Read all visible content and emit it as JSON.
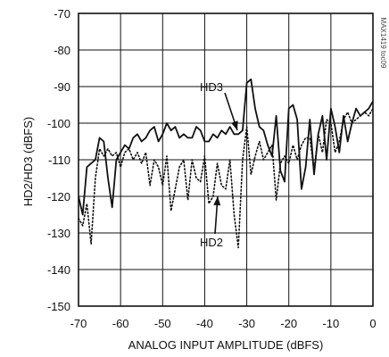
{
  "chart_data": {
    "type": "line",
    "title": "",
    "xlabel": "ANALOG INPUT AMPLITUDE (dBFS)",
    "ylabel": "HD2/HD3 (dBFS)",
    "xlim": [
      -70,
      0
    ],
    "ylim": [
      -150,
      -70
    ],
    "xticks": [
      "-70",
      "-60",
      "-50",
      "-40",
      "-30",
      "-20",
      "-10",
      "0"
    ],
    "yticks": [
      "-70",
      "-80",
      "-90",
      "-100",
      "-110",
      "-120",
      "-130",
      "-140",
      "-150"
    ],
    "grid": true,
    "series": [
      {
        "name": "HD3",
        "style": "solid",
        "x": [
          -70,
          -69,
          -68,
          -67,
          -66,
          -65,
          -64,
          -63,
          -62,
          -61,
          -60,
          -59,
          -58,
          -57,
          -56,
          -55,
          -54,
          -53,
          -52,
          -51,
          -50,
          -49,
          -48,
          -47,
          -46,
          -45,
          -44,
          -43,
          -42,
          -41,
          -40,
          -39,
          -38,
          -37,
          -36,
          -35,
          -34,
          -33,
          -32,
          -31,
          -30,
          -29,
          -28,
          -27,
          -26,
          -25,
          -24,
          -23,
          -22,
          -21,
          -20,
          -19,
          -18,
          -17,
          -16,
          -15,
          -14,
          -13,
          -12,
          -11,
          -10,
          -9,
          -8,
          -7,
          -6,
          -5,
          -4,
          -3,
          -2,
          -1,
          0
        ],
        "values": [
          -120,
          -125,
          -112,
          -111,
          -110,
          -104,
          -105,
          -115,
          -123,
          -110,
          -108,
          -106,
          -107,
          -104,
          -103,
          -105,
          -104,
          -102,
          -101,
          -105,
          -103,
          -100,
          -102,
          -101,
          -104,
          -103,
          -104,
          -104,
          -101,
          -102,
          -105,
          -105,
          -103,
          -104,
          -102,
          -103,
          -101,
          -103,
          -103,
          -102,
          -89,
          -88,
          -96,
          -101,
          -102,
          -106,
          -109,
          -98,
          -113,
          -116,
          -96,
          -95,
          -99,
          -118,
          -112,
          -99,
          -114,
          -103,
          -98,
          -110,
          -96,
          -101,
          -108,
          -98,
          -105,
          -100,
          -96,
          -98,
          -97,
          -96,
          -94
        ]
      },
      {
        "name": "HD2",
        "style": "dotted",
        "x": [
          -70,
          -69,
          -68,
          -67,
          -66,
          -65,
          -64,
          -63,
          -62,
          -61,
          -60,
          -59,
          -58,
          -57,
          -56,
          -55,
          -54,
          -53,
          -52,
          -51,
          -50,
          -49,
          -48,
          -47,
          -46,
          -45,
          -44,
          -43,
          -42,
          -41,
          -40,
          -39,
          -38,
          -37,
          -36,
          -35,
          -34,
          -33,
          -32,
          -31,
          -30,
          -29,
          -28,
          -27,
          -26,
          -25,
          -24,
          -23,
          -22,
          -21,
          -20,
          -19,
          -18,
          -17,
          -16,
          -15,
          -14,
          -13,
          -12,
          -11,
          -10,
          -9,
          -8,
          -7,
          -6,
          -5,
          -4,
          -3,
          -2,
          -1,
          0
        ],
        "values": [
          -126,
          -128,
          -122,
          -133,
          -115,
          -107,
          -109,
          -107,
          -109,
          -108,
          -112,
          -108,
          -107,
          -110,
          -108,
          -111,
          -108,
          -117,
          -110,
          -112,
          -117,
          -109,
          -124,
          -118,
          -112,
          -110,
          -121,
          -110,
          -115,
          -116,
          -109,
          -122,
          -120,
          -111,
          -117,
          -118,
          -110,
          -125,
          -134,
          -110,
          -101,
          -114,
          -109,
          -105,
          -110,
          -108,
          -106,
          -121,
          -111,
          -109,
          -111,
          -106,
          -110,
          -106,
          -104,
          -104,
          -113,
          -103,
          -108,
          -99,
          -100,
          -108,
          -105,
          -99,
          -97,
          -100,
          -99,
          -98,
          -97,
          -98,
          -96
        ]
      }
    ],
    "annotations": [
      {
        "text": "HD3",
        "target_series": "HD3"
      },
      {
        "text": "HD2",
        "target_series": "HD2"
      }
    ],
    "side_label": "MAX1419 toc09"
  }
}
